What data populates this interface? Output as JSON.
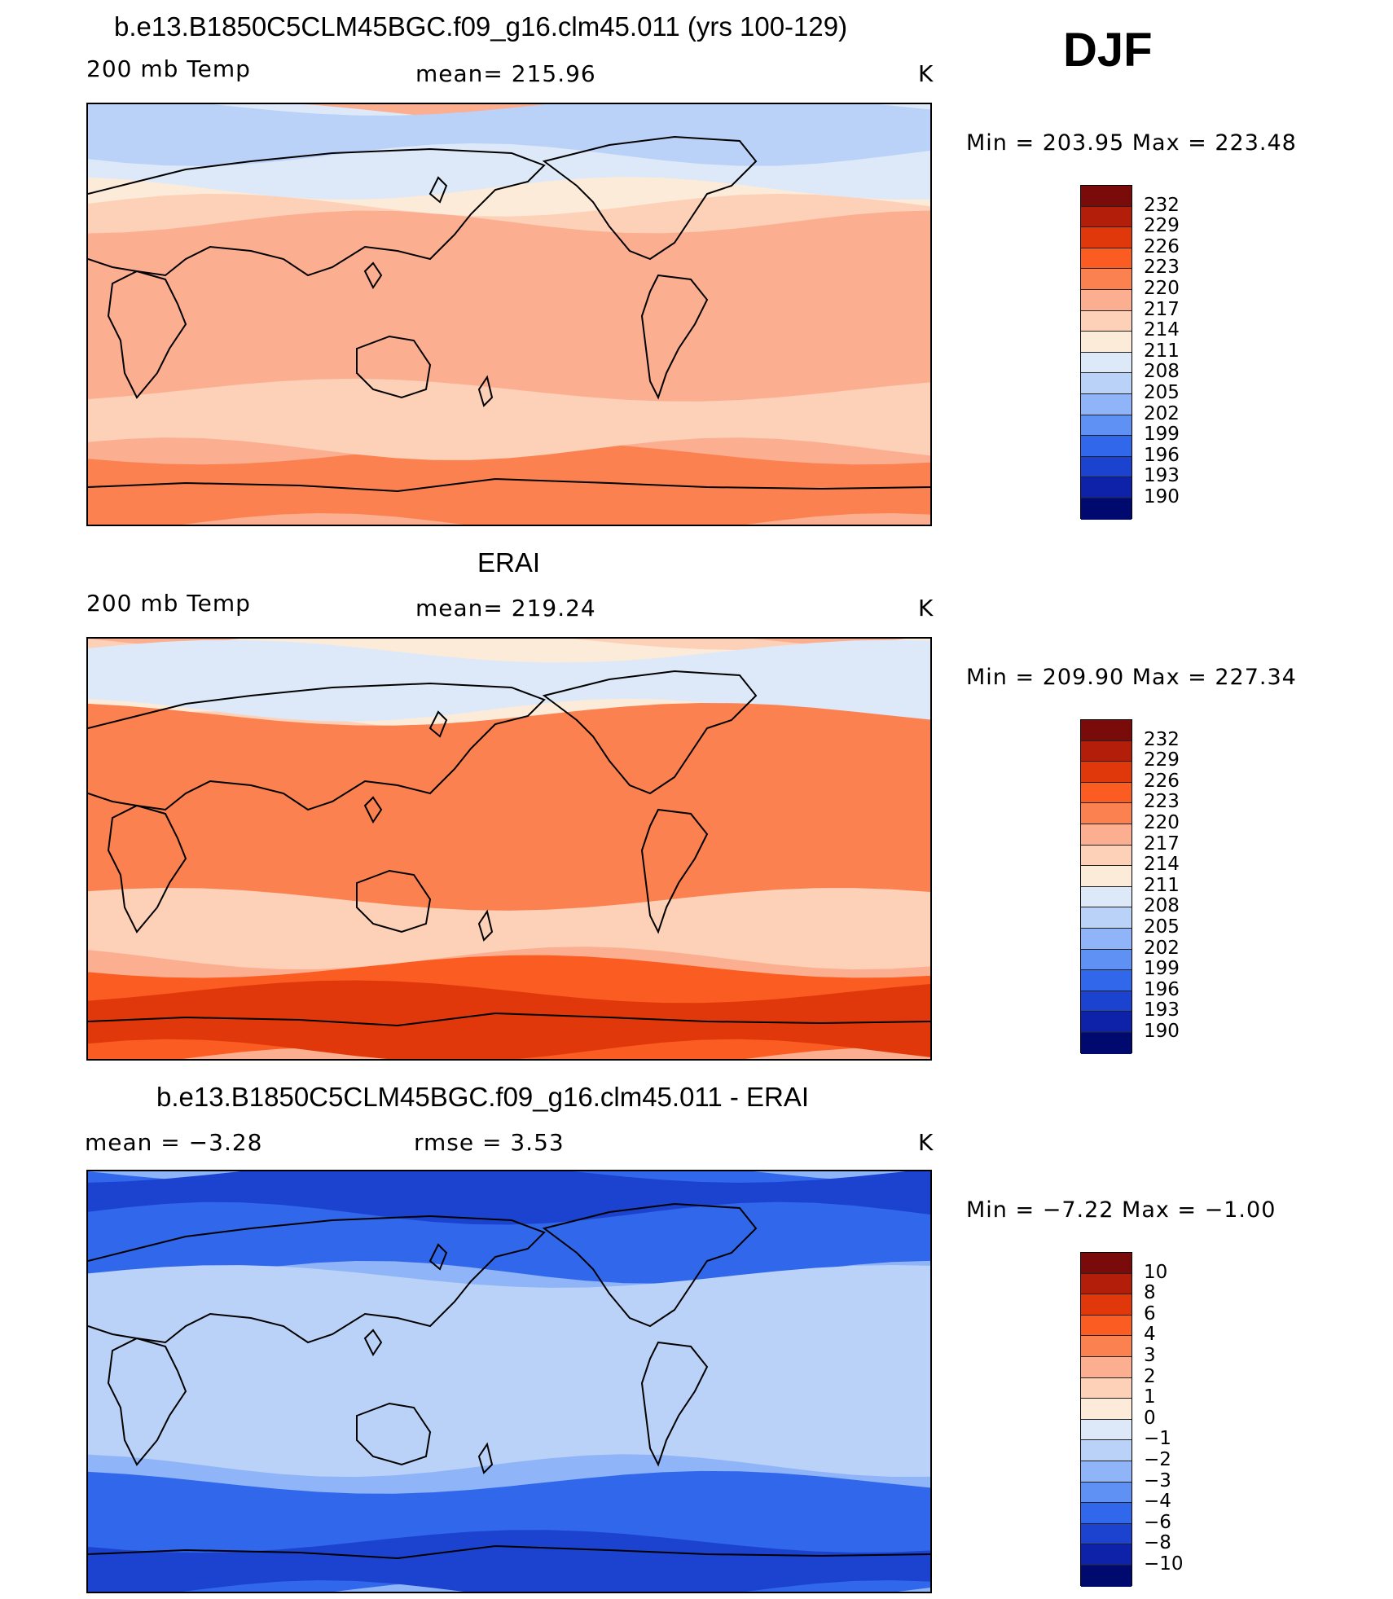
{
  "season": "DJF",
  "panels": [
    {
      "title": "b.e13.B1850C5CLM45BGC.f09_g16.clm45.011 (yrs 100-129)",
      "left_label": "200 mb Temp",
      "center_label": "mean= 215.96",
      "units": "K",
      "minmax": "Min = 203.95 Max = 223.48",
      "background": "#fcae91",
      "colorbar": {
        "labels": [
          "232",
          "229",
          "226",
          "223",
          "220",
          "217",
          "214",
          "211",
          "208",
          "205",
          "202",
          "199",
          "196",
          "193",
          "190"
        ],
        "colors": [
          "#7a0b0b",
          "#b31e0a",
          "#e0380a",
          "#fb5c21",
          "#fb8150",
          "#fcae91",
          "#fdd0b8",
          "#fdebd9",
          "#dde9f8",
          "#bad2f8",
          "#8fb4f7",
          "#5f90f3",
          "#3167eb",
          "#1b43cf",
          "#0d22a8",
          "#000a6e"
        ]
      },
      "fields": [
        {
          "color": "#fdd0b8",
          "band": [
            0.1,
            0.28
          ]
        },
        {
          "color": "#fdebd9",
          "band": [
            0.1,
            0.24
          ]
        },
        {
          "color": "#dde9f8",
          "band": [
            0.02,
            0.2
          ]
        },
        {
          "color": "#bad2f8",
          "band": [
            0.0,
            0.12
          ]
        },
        {
          "color": "#fb8150",
          "band": [
            0.83,
            1.0
          ]
        },
        {
          "color": "#fdd0b8",
          "band": [
            0.68,
            0.82
          ]
        }
      ]
    },
    {
      "title": "ERAI",
      "left_label": "200 mb Temp",
      "center_label": "mean= 219.24",
      "units": "K",
      "minmax": "Min = 209.90 Max = 227.34",
      "background": "#fcae91",
      "colorbar": {
        "labels": [
          "232",
          "229",
          "226",
          "223",
          "220",
          "217",
          "214",
          "211",
          "208",
          "205",
          "202",
          "199",
          "196",
          "193",
          "190"
        ],
        "colors": [
          "#7a0b0b",
          "#b31e0a",
          "#e0380a",
          "#fb5c21",
          "#fb8150",
          "#fcae91",
          "#fdd0b8",
          "#fdebd9",
          "#dde9f8",
          "#bad2f8",
          "#8fb4f7",
          "#5f90f3",
          "#3167eb",
          "#1b43cf",
          "#0d22a8",
          "#000a6e"
        ]
      },
      "fields": [
        {
          "color": "#fdd0b8",
          "band": [
            0.0,
            0.3
          ]
        },
        {
          "color": "#fdebd9",
          "band": [
            0.0,
            0.2
          ]
        },
        {
          "color": "#dde9f8",
          "band": [
            0.03,
            0.17
          ]
        },
        {
          "color": "#fb8150",
          "band": [
            0.18,
            0.7
          ]
        },
        {
          "color": "#fb5c21",
          "band": [
            0.78,
            1.0
          ]
        },
        {
          "color": "#e0380a",
          "band": [
            0.84,
            0.98
          ]
        },
        {
          "color": "#fdd0b8",
          "band": [
            0.62,
            0.76
          ]
        }
      ]
    },
    {
      "title": "b.e13.B1850C5CLM45BGC.f09_g16.clm45.011 - ERAI",
      "left_label": "mean = −3.28",
      "center_label": "rmse = 3.53",
      "units": "K",
      "minmax": "Min = −7.22 Max = −1.00",
      "background": "#8fb4f7",
      "colorbar": {
        "labels": [
          "10",
          "8",
          "6",
          "4",
          "3",
          "2",
          "1",
          "0",
          "−1",
          "−2",
          "−3",
          "−4",
          "−6",
          "−8",
          "−10"
        ],
        "colors": [
          "#7a0b0b",
          "#b31e0a",
          "#e0380a",
          "#fb5c21",
          "#fb8150",
          "#fcae91",
          "#fdd0b8",
          "#fdebd9",
          "#dde9f8",
          "#bad2f8",
          "#8fb4f7",
          "#5f90f3",
          "#3167eb",
          "#1b43cf",
          "#0d22a8",
          "#000a6e"
        ]
      },
      "fields": [
        {
          "color": "#3167eb",
          "band": [
            0.0,
            0.24
          ]
        },
        {
          "color": "#1b43cf",
          "band": [
            0.0,
            0.1
          ]
        },
        {
          "color": "#bad2f8",
          "band": [
            0.25,
            0.7
          ]
        },
        {
          "color": "#3167eb",
          "band": [
            0.74,
            1.0
          ]
        },
        {
          "color": "#1b43cf",
          "band": [
            0.88,
            1.0
          ]
        }
      ]
    }
  ]
}
